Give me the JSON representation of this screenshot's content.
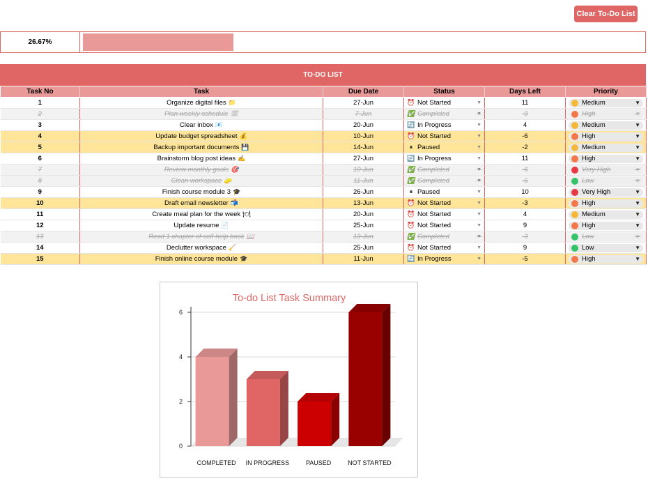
{
  "toolbar": {
    "clear_label": "Clear To-Do List"
  },
  "progress": {
    "label": "26.67%",
    "value": 0.2667
  },
  "table": {
    "title": "TO-DO LIST",
    "headers": [
      "Task No",
      "Task",
      "Due Date",
      "Status",
      "Days Left",
      "Priority"
    ],
    "rows": [
      {
        "no": "1",
        "task": "Organize digital files",
        "emoji": "📁",
        "due": "27-Jun",
        "status": "Not Started",
        "days": "11",
        "priority": "Medium",
        "state": "normal"
      },
      {
        "no": "2",
        "task": "Plan weekly schedule",
        "emoji": "🗓",
        "due": "7-Jun",
        "status": "Completed",
        "days": "-9",
        "priority": "High",
        "state": "done"
      },
      {
        "no": "3",
        "task": "Clear inbox",
        "emoji": "📧",
        "due": "20-Jun",
        "status": "In Progress",
        "days": "4",
        "priority": "Medium",
        "state": "normal"
      },
      {
        "no": "4",
        "task": "Update budget spreadsheet",
        "emoji": "💰",
        "due": "10-Jun",
        "status": "Not Started",
        "days": "-6",
        "priority": "High",
        "state": "overdue"
      },
      {
        "no": "5",
        "task": "Backup important documents",
        "emoji": "💾",
        "due": "14-Jun",
        "status": "Paused",
        "days": "-2",
        "priority": "Medium",
        "state": "overdue"
      },
      {
        "no": "6",
        "task": "Brainstorm blog post ideas",
        "emoji": "✍",
        "due": "27-Jun",
        "status": "In Progress",
        "days": "11",
        "priority": "High",
        "state": "normal"
      },
      {
        "no": "7",
        "task": "Review monthly goals",
        "emoji": "🎯",
        "due": "10-Jun",
        "status": "Completed",
        "days": "-6",
        "priority": "Very High",
        "state": "done"
      },
      {
        "no": "8",
        "task": "Clean workspace",
        "emoji": "🧽",
        "due": "11-Jun",
        "status": "Completed",
        "days": "-5",
        "priority": "Low",
        "state": "done"
      },
      {
        "no": "9",
        "task": "Finish course module 3",
        "emoji": "🎓",
        "due": "26-Jun",
        "status": "Paused",
        "days": "10",
        "priority": "Very High",
        "state": "normal"
      },
      {
        "no": "10",
        "task": "Draft email newsletter",
        "emoji": "📬",
        "due": "13-Jun",
        "status": "Not Started",
        "days": "-3",
        "priority": "High",
        "state": "overdue"
      },
      {
        "no": "11",
        "task": "Create meal plan for the week",
        "emoji": "🍽",
        "due": "20-Jun",
        "status": "Not Started",
        "days": "4",
        "priority": "Medium",
        "state": "normal"
      },
      {
        "no": "12",
        "task": "Update resume",
        "emoji": "📄",
        "due": "25-Jun",
        "status": "Not Started",
        "days": "9",
        "priority": "High",
        "state": "normal"
      },
      {
        "no": "13",
        "task": "Read 1 chapter of self-help book",
        "emoji": "📖",
        "due": "13-Jun",
        "status": "Completed",
        "days": "-3",
        "priority": "Low",
        "state": "done"
      },
      {
        "no": "14",
        "task": "Declutter workspace",
        "emoji": "🧹",
        "due": "25-Jun",
        "status": "Not Started",
        "days": "9",
        "priority": "Low",
        "state": "normal"
      },
      {
        "no": "15",
        "task": "Finish online course module",
        "emoji": "🎓",
        "due": "11-Jun",
        "status": "In Progress",
        "days": "-5",
        "priority": "High",
        "state": "overdue"
      }
    ]
  },
  "status_icons": {
    "Not Started": {
      "icon": "⏰",
      "name": "alarm-clock-icon"
    },
    "Completed": {
      "icon": "✅",
      "name": "check-mark-icon"
    },
    "In Progress": {
      "icon": "🔄",
      "name": "cycle-arrows-icon"
    },
    "Paused": {
      "icon": "⏸",
      "name": "pause-icon"
    }
  },
  "priority_colors": {
    "Low": "#35c26a",
    "Medium": "#f3b73a",
    "High": "#f2774a",
    "Very High": "#e53945"
  },
  "colors": {
    "accent": "#e06666",
    "header_fill": "#ea9999",
    "overdue_row": "#ffe599",
    "completed_row": "#f2f2f2"
  },
  "chart_data": {
    "type": "bar",
    "title": "To-do List Task Summary",
    "categories": [
      "COMPLETED",
      "IN PROGRESS",
      "PAUSED",
      "NOT STARTED"
    ],
    "values": [
      4,
      3,
      2,
      6
    ],
    "colors": [
      "#ea9999",
      "#e06666",
      "#cc0000",
      "#990000"
    ],
    "ylim": [
      0,
      6
    ],
    "yticks": [
      0,
      2,
      4,
      6
    ],
    "grid": true,
    "style": "3d",
    "legend": "none"
  }
}
